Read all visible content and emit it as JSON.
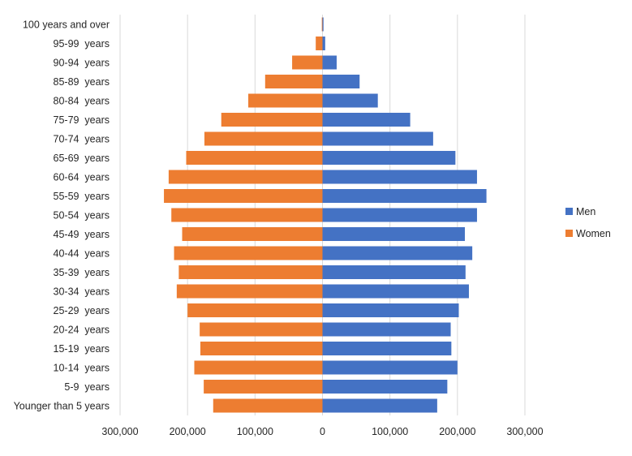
{
  "chart_data": {
    "type": "bar",
    "orientation": "horizontal",
    "layout": "population-pyramid",
    "categories": [
      "100 years and over",
      "95-99  years",
      "90-94  years",
      "85-89  years",
      "80-84  years",
      "75-79  years",
      "70-74  years",
      "65-69  years",
      "60-64  years",
      "55-59  years",
      "50-54  years",
      "45-49  years",
      "40-44  years",
      "35-39  years",
      "30-34  years",
      "25-29  years",
      "20-24  years",
      "15-19  years",
      "10-14  years",
      "5-9  years",
      "Younger than 5 years"
    ],
    "series": [
      {
        "name": "Men",
        "color": "#4472C4",
        "values": [
          1500,
          4000,
          21000,
          55000,
          82000,
          130000,
          164000,
          197000,
          229000,
          243000,
          229000,
          211000,
          222000,
          212000,
          217000,
          202000,
          190000,
          191000,
          200000,
          185000,
          170000
        ]
      },
      {
        "name": "Women",
        "color": "#ED7D31",
        "values": [
          1000,
          10000,
          45000,
          85000,
          110000,
          150000,
          175000,
          202000,
          228000,
          235000,
          224000,
          208000,
          220000,
          213000,
          216000,
          200000,
          182000,
          181000,
          190000,
          176000,
          162000
        ]
      }
    ],
    "xlim": [
      -300000,
      300000
    ],
    "x_ticks": [
      {
        "value": -300000,
        "label": "300,000"
      },
      {
        "value": -200000,
        "label": "200,000"
      },
      {
        "value": -100000,
        "label": "100,000"
      },
      {
        "value": 0,
        "label": "0"
      },
      {
        "value": 100000,
        "label": "100,000"
      },
      {
        "value": 200000,
        "label": "200,000"
      },
      {
        "value": 300000,
        "label": "300,000"
      }
    ],
    "grid": "vertical",
    "legend_position": "right",
    "title": "",
    "xlabel": "",
    "ylabel": ""
  }
}
